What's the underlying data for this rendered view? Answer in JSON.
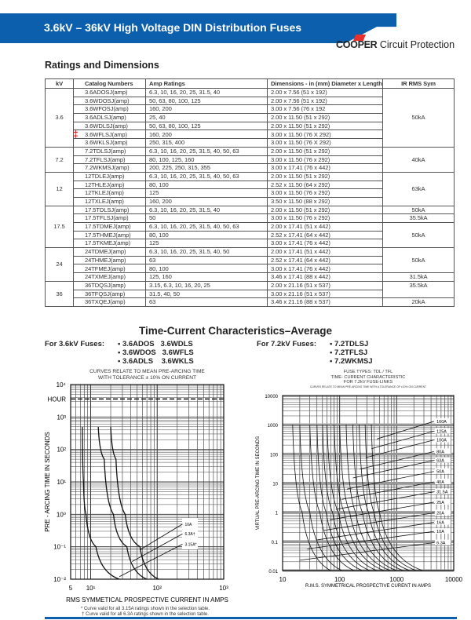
{
  "header": {
    "title": "3.6kV – 36kV High Voltage DIN Distribution Fuses",
    "logo_brand": "COOPER",
    "logo_text": "Circuit Protection",
    "brand_color": "#0b5fad",
    "logo_accent": "#e8312f"
  },
  "ratings": {
    "title": "Ratings and Dimensions",
    "columns": [
      "kV",
      "Catalog Numbers",
      "Amp Ratings",
      "Dimensions - in (mm) Diameter x Length",
      "IR RMS Sym"
    ],
    "marker": "‡",
    "groups": [
      {
        "kv": "3.6",
        "rows": [
          {
            "cat": "3.6ADOSJ(amp)",
            "amps": "6.3, 10, 16, 20, 25, 31.5, 40",
            "dim": "2.00 x 7.56 (51 x 192)"
          },
          {
            "cat": "3.6WDOSJ(amp)",
            "amps": "50, 63, 80, 100, 125",
            "dim": "2.00 x 7.56 (51 x 192)"
          },
          {
            "cat": "3.6WFOSJ(amp)",
            "amps": "160, 200",
            "dim": "3.00 x 7.56 (76 x 192"
          },
          {
            "cat": "3.6ADLSJ(amp)",
            "amps": "25, 40",
            "dim": "2.00 x 11.50 (51 x 292)"
          },
          {
            "cat": "3.6WDLSJ(amp)",
            "amps": "50, 63, 80, 100, 125",
            "dim": "2.00 x 11.50 (51 x 292)"
          },
          {
            "cat": "3.6WFLSJ(amp)",
            "amps": "160, 200",
            "dim": "3.00 x 11.50 (76 X 292)"
          },
          {
            "cat": "3.6WKLSJ(amp)",
            "amps": "250, 315, 400",
            "dim": "3.00 x 11.50 (76 X 292)"
          }
        ],
        "ir": [
          {
            "span": 7,
            "v": "50kA"
          }
        ]
      },
      {
        "kv": "7.2",
        "rows": [
          {
            "cat": "7.2TDLSJ(amp)",
            "amps": "6.3, 10, 16, 20, 25, 31.5, 40, 50, 63",
            "dim": "2.00 x 11.50 (51 x 292)"
          },
          {
            "cat": "7.2TFLSJ(amp)",
            "amps": "80, 100, 125, 160",
            "dim": "3.00 x 11.50 (76 x 292)"
          },
          {
            "cat": "7.2WKMSJ(amp)",
            "amps": "200, 225, 250, 315, 355",
            "dim": "3.00 x 17.41 (76 x 442)"
          }
        ],
        "ir": [
          {
            "span": 3,
            "v": "40kA"
          }
        ]
      },
      {
        "kv": "12",
        "rows": [
          {
            "cat": "12TDLEJ(amp)",
            "amps": "6.3, 10, 16, 20, 25, 31.5, 40, 50, 63",
            "dim": "2.00 x 11.50 (51 x 292)"
          },
          {
            "cat": "12THLEJ(amp)",
            "amps": "80, 100",
            "dim": "2.52 x 11.50 (64 x 292)"
          },
          {
            "cat": "12TKLEJ(amp)",
            "amps": "125",
            "dim": "3.00 x 11.50 (76 x 292)"
          },
          {
            "cat": "12TXLEJ(amp)",
            "amps": "160, 200",
            "dim": "3.50 x 11.50 (88 x 292)"
          }
        ],
        "ir": [
          {
            "span": 4,
            "v": "63kA"
          }
        ]
      },
      {
        "kv": "17.5",
        "rows": [
          {
            "cat": "17.5TDLSJ(amp)",
            "amps": "6.3, 10, 16, 20, 25, 31.5, 40",
            "dim": "2.00 x 11.50 (51 x 292)"
          },
          {
            "cat": "17.5TFLSJ(amp)",
            "amps": "50",
            "dim": "3.00 x 11.50 (76 x 292)"
          },
          {
            "cat": "17.5TDMEJ(amp)",
            "amps": "6.3, 10, 16, 20, 25, 31.5, 40, 50, 63",
            "dim": "2.00 x 17.41 (51 x 442)"
          },
          {
            "cat": "17.5THMEJ(amp)",
            "amps": "80, 100",
            "dim": "2.52 x 17.41 (64 x 442)"
          },
          {
            "cat": "17.5TKMEJ(amp)",
            "amps": "125",
            "dim": "3.00 x 17.41 (76 x 442)"
          }
        ],
        "ir": [
          {
            "span": 1,
            "v": "50kA"
          },
          {
            "span": 1,
            "v": "35.5kA"
          },
          {
            "span": 3,
            "v": "50kA"
          }
        ]
      },
      {
        "kv": "24",
        "rows": [
          {
            "cat": "24TDMEJ(amp)",
            "amps": "6.3, 10, 16, 20, 25, 31.5, 40, 50",
            "dim": "2.00 x 17.41 (51 x 442)"
          },
          {
            "cat": "24THMEJ(amp)",
            "amps": "63",
            "dim": "2.52 x 17.41 (64 x 442)"
          },
          {
            "cat": "24TFMEJ(amp)",
            "amps": "80, 100",
            "dim": "3.00 x 17.41 (76 x 442)"
          },
          {
            "cat": "24TXMEJ(amp)",
            "amps": "125, 160",
            "dim": "3.46 x 17.41 (88 x 442)"
          }
        ],
        "ir": [
          {
            "span": 3,
            "v": "50kA"
          },
          {
            "span": 1,
            "v": "31.5kA"
          }
        ]
      },
      {
        "kv": "36",
        "rows": [
          {
            "cat": "36TDQSJ(amp)",
            "amps": "3.15, 6.3, 10, 16, 20, 25",
            "dim": "2.00 x 21.16 (51 x 537)"
          },
          {
            "cat": "36TFQSJ(amp)",
            "amps": "31.5, 40, 50",
            "dim": "3.00 x 21.16 (51 x 537)"
          },
          {
            "cat": "36TXQEJ(amp)",
            "amps": "63",
            "dim": "3.46 x 21.16 (88 x 537)"
          }
        ],
        "ir": [
          {
            "span": 2,
            "v": "35.5kA"
          },
          {
            "span": 1,
            "v": "20kA"
          }
        ]
      }
    ]
  },
  "tcc": {
    "title": "Time-Current Characteristics–Average",
    "left_label": "For 3.6kV Fuses:",
    "left_list": [
      "• 3.6ADOS   3.6WDLS",
      "• 3.6WDOS   3.6WFLS",
      "• 3.6ADLS    3.6WKLS"
    ],
    "right_label": "For 7.2kV Fuses:",
    "right_list": [
      "• 7.2TDLSJ",
      "• 7.2TFLSJ",
      "• 7.2WKMSJ"
    ],
    "left_caption": [
      "CURVES RELATE TO MEAN PRE-ARCING TIME",
      "WITH TOLERANCE ± 10% ON CURRENT"
    ],
    "left_footnotes": [
      "* Curve valid for all 3.15A ratings shown in the selection table.",
      "† Curve valid for all 6.3A ratings shown in the selection table."
    ],
    "right_caption": [
      "FUSE TYPES:  TDL / TFL",
      "TIME- CURRENT CHARACTERISTIC",
      "FOR 7.2kV FUSE-LINKS",
      "CURVES RELATE TO MEAN PRE-ARCING TIME WITH A TOLERANCE OF ±10% ON CURRENT"
    ]
  },
  "chart_data": [
    {
      "type": "line",
      "xscale": "log",
      "yscale": "log",
      "xlabel": "RMS SYMMETICAL PROSPECTIVE CURRENT IN AMPS",
      "ylabel": "PRE - ARCING TIME IN SECONDS",
      "xlim": [
        5,
        1000
      ],
      "ylim": [
        0.01,
        10000
      ],
      "xticks": [
        "5",
        "10¹",
        "10²",
        "10³"
      ],
      "yticks": [
        "10⁴",
        "HOUR",
        "10³",
        "10²",
        "10¹",
        "10⁰",
        "10⁻¹",
        "10⁻²"
      ],
      "hour_line": 3600,
      "grid": true,
      "series": [
        {
          "name": "10A",
          "points": [
            [
              20,
              500
            ],
            [
              24,
              50
            ],
            [
              33,
              1
            ],
            [
              55,
              0.1
            ],
            [
              105,
              0.01
            ]
          ]
        },
        {
          "name": "6.3A†",
          "points": [
            [
              13,
              500
            ],
            [
              16,
              50
            ],
            [
              22,
              1
            ],
            [
              35,
              0.1
            ],
            [
              70,
              0.01
            ]
          ]
        },
        {
          "name": "3.15A*",
          "points": [
            [
              7.5,
              500
            ],
            [
              7.8,
              10
            ],
            [
              8.5,
              1
            ],
            [
              12,
              0.1
            ],
            [
              27,
              0.01
            ]
          ]
        }
      ]
    },
    {
      "type": "line",
      "xscale": "log",
      "yscale": "log",
      "xlabel": "R.M.S. SYMMETRICAL PROSPECTIVE CURENT IN AMPS",
      "ylabel": "VIRTUAL PRE-ARCING TIME IN SECONDS",
      "xlim": [
        10,
        10000
      ],
      "ylim": [
        0.01,
        10000
      ],
      "xticks": [
        "10",
        "100",
        "1000",
        "10000"
      ],
      "yticks": [
        "10000",
        "1000",
        "100",
        "10",
        "1",
        "0.1",
        "0.01"
      ],
      "grid": true,
      "series": [
        {
          "name": "160A",
          "points": [
            [
              360,
              1000
            ],
            [
              500,
              1
            ],
            [
              2850,
              0.01
            ]
          ]
        },
        {
          "name": "125A",
          "points": [
            [
              280,
              1000
            ],
            [
              400,
              1
            ],
            [
              2200,
              0.01
            ]
          ]
        },
        {
          "name": "100A",
          "points": [
            [
              220,
              1000
            ],
            [
              320,
              1
            ],
            [
              1700,
              0.01
            ]
          ]
        },
        {
          "name": "80A",
          "points": [
            [
              170,
              1000
            ],
            [
              250,
              1
            ],
            [
              1300,
              0.01
            ]
          ]
        },
        {
          "name": "63A",
          "points": [
            [
              130,
              1000
            ],
            [
              190,
              1
            ],
            [
              1000,
              0.01
            ]
          ]
        },
        {
          "name": "50A",
          "points": [
            [
              100,
              1000
            ],
            [
              150,
              1
            ],
            [
              780,
              0.01
            ]
          ]
        },
        {
          "name": "40A",
          "points": [
            [
              80,
              1000
            ],
            [
              120,
              1
            ],
            [
              600,
              0.01
            ]
          ]
        },
        {
          "name": "31.5A",
          "points": [
            [
              60,
              1000
            ],
            [
              95,
              1
            ],
            [
              450,
              0.01
            ]
          ]
        },
        {
          "name": "25A",
          "points": [
            [
              50,
              1000
            ],
            [
              75,
              1
            ],
            [
              340,
              0.01
            ]
          ]
        },
        {
          "name": "20A",
          "points": [
            [
              40,
              1000
            ],
            [
              58,
              1
            ],
            [
              250,
              0.01
            ]
          ]
        },
        {
          "name": "16A",
          "points": [
            [
              30,
              1000
            ],
            [
              45,
              1
            ],
            [
              180,
              0.01
            ]
          ]
        },
        {
          "name": "10A",
          "points": [
            [
              20,
              1000
            ],
            [
              30,
              1
            ],
            [
              110,
              0.01
            ]
          ]
        },
        {
          "name": "6.3A",
          "points": [
            [
              15,
              1000
            ],
            [
              22,
              1
            ],
            [
              70,
              0.01
            ]
          ]
        }
      ]
    }
  ]
}
